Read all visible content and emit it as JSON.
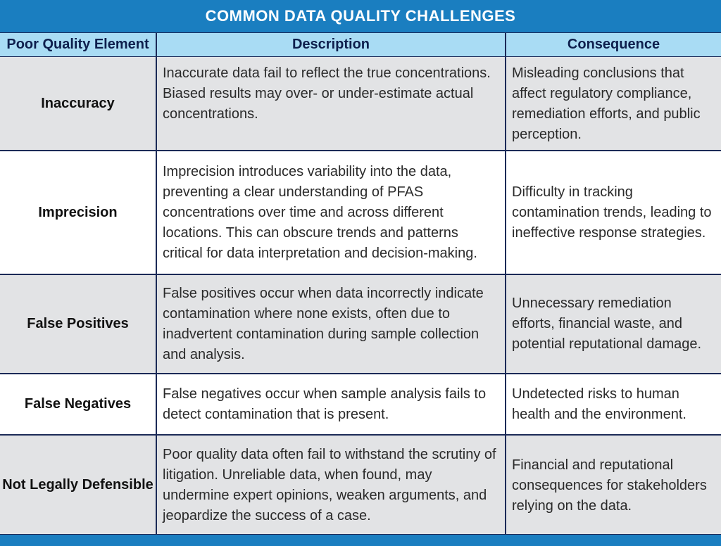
{
  "title": "COMMON DATA QUALITY CHALLENGES",
  "headers": [
    "Poor Quality Element",
    "Description",
    "Consequence"
  ],
  "rows": [
    {
      "element": "Inaccuracy",
      "description": "Inaccurate data fail to reflect the true concentrations. Biased results may over- or under-estimate actual concentrations.",
      "consequence": "Misleading conclusions that affect regulatory compliance, remediation efforts, and public perception."
    },
    {
      "element": "Imprecision",
      "description": "Imprecision introduces variability into the data, preventing a clear understanding of PFAS concentrations over time and across different locations. This can obscure trends and patterns critical for data interpretation and decision-making.",
      "consequence": "Difficulty in tracking contamination trends, leading to ineffective response strategies."
    },
    {
      "element": "False Positives",
      "description": "False positives occur when data incorrectly indicate contamination where none exists, often due to inadvertent contamination during sample collection and analysis.",
      "consequence": "Unnecessary remediation efforts, financial waste, and potential reputational damage."
    },
    {
      "element": "False Negatives",
      "description": "False negatives occur when sample analysis fails to detect contamination that is present.",
      "consequence": "Undetected risks to human health and the environment."
    },
    {
      "element": "Not Legally Defensible",
      "description": "Poor quality data often fail to withstand the scrutiny of litigation. Unreliable data, when found, may undermine expert opinions, weaken arguments, and jeopardize the success of a case.",
      "consequence": "Financial and reputational consequences for stakeholders relying on the data."
    }
  ],
  "colors": {
    "title_bg": "#1a7ec0",
    "header_bg": "#a9dcf4",
    "border": "#1b2a57",
    "row_gray": "#e2e3e5",
    "row_white": "#ffffff"
  }
}
